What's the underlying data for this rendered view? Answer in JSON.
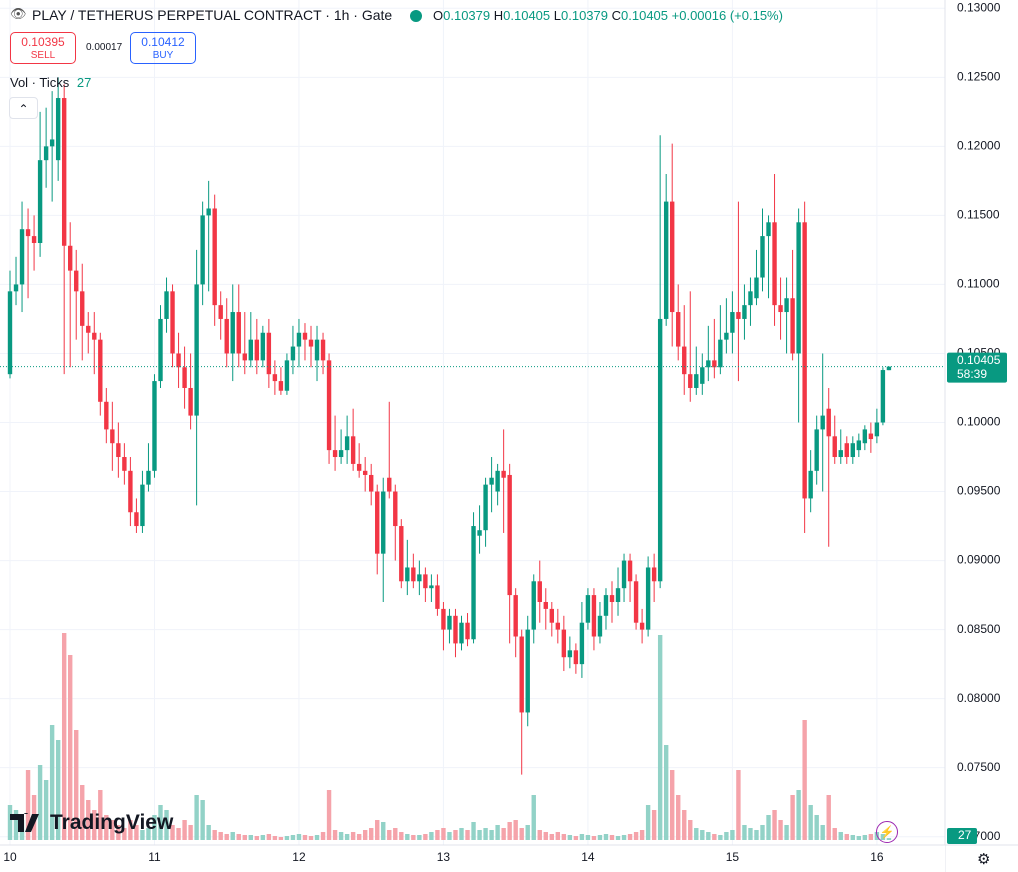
{
  "chart_data": {
    "type": "candlestick",
    "title": "PLAY / TETHERUS PERPETUAL CONTRACT · 1h · Gate",
    "categories": [
      "10",
      null,
      null,
      null,
      null,
      null,
      null,
      null,
      null,
      null,
      null,
      null,
      null,
      null,
      null,
      null,
      null,
      null,
      null,
      null,
      null,
      null,
      null,
      null,
      "11",
      null,
      null,
      null,
      null,
      null,
      null,
      null,
      null,
      null,
      null,
      null,
      null,
      null,
      null,
      null,
      null,
      null,
      null,
      null,
      null,
      null,
      null,
      null,
      "12",
      null,
      null,
      null,
      null,
      null,
      null,
      null,
      null,
      null,
      null,
      null,
      null,
      null,
      null,
      null,
      null,
      null,
      null,
      null,
      null,
      null,
      null,
      null,
      "13",
      null,
      null,
      null,
      null,
      null,
      null,
      null,
      null,
      null,
      null,
      null,
      null,
      null,
      null,
      null,
      null,
      null,
      null,
      null,
      null,
      null,
      null,
      null,
      "14",
      null,
      null,
      null,
      null,
      null,
      null,
      null,
      null,
      null,
      null,
      null,
      null,
      null,
      null,
      null,
      null,
      null,
      null,
      null,
      null,
      null,
      null,
      null,
      "15",
      null,
      null,
      null,
      null,
      null,
      null,
      null,
      null,
      null,
      null,
      null,
      null,
      null,
      null,
      null,
      null,
      null,
      null,
      null,
      null,
      null,
      null,
      null,
      "16",
      null,
      null
    ],
    "open": [
      0.1035,
      0.1095,
      0.11,
      0.114,
      0.1135,
      0.113,
      0.119,
      0.12,
      0.119,
      0.1235,
      0.1128,
      0.111,
      0.1095,
      0.107,
      0.1065,
      0.106,
      0.1015,
      0.0995,
      0.0985,
      0.0975,
      0.0965,
      0.0935,
      0.0925,
      0.0955,
      0.0965,
      0.103,
      0.1075,
      0.1095,
      0.105,
      0.104,
      0.1025,
      0.1005,
      0.11,
      0.115,
      0.1155,
      0.1085,
      0.1075,
      0.105,
      0.108,
      0.105,
      0.1045,
      0.106,
      0.1045,
      0.1065,
      0.1035,
      0.103,
      0.1023,
      0.1045,
      0.1055,
      0.1065,
      0.106,
      0.1045,
      0.106,
      0.1045,
      0.098,
      0.0975,
      0.098,
      0.099,
      0.097,
      0.0965,
      0.0962,
      0.095,
      0.0905,
      0.096,
      0.095,
      0.0925,
      0.0885,
      0.0895,
      0.0885,
      0.089,
      0.088,
      0.0882,
      0.0865,
      0.085,
      0.086,
      0.084,
      0.0855,
      0.0843,
      0.0918,
      0.0922,
      0.0955,
      0.095,
      0.0965,
      0.0962,
      0.0875,
      0.0845,
      0.079,
      0.085,
      0.0885,
      0.087,
      0.0865,
      0.0855,
      0.085,
      0.083,
      0.0835,
      0.0825,
      0.0855,
      0.0875,
      0.0845,
      0.086,
      0.0875,
      0.087,
      0.088,
      0.09,
      0.0885,
      0.0855,
      0.085,
      0.0895,
      0.0885,
      0.1075,
      0.116,
      0.108,
      0.1055,
      0.1035,
      0.1025,
      0.1028,
      0.104,
      0.1045,
      0.104,
      0.106,
      0.1065,
      0.108,
      0.1075,
      0.1085,
      0.109,
      0.1105,
      0.1135,
      0.1145,
      0.1085,
      0.108,
      0.109,
      0.105,
      0.1145,
      0.0945,
      0.0965,
      0.0995,
      0.101,
      0.099,
      0.0975,
      0.0985,
      0.0975,
      0.098,
      0.0985,
      0.0992,
      0.099,
      0.1,
      0.10379
    ],
    "high": [
      0.111,
      0.112,
      0.116,
      0.1155,
      0.115,
      0.1225,
      0.1228,
      0.124,
      0.125,
      0.1245,
      0.1145,
      0.1125,
      0.1115,
      0.108,
      0.108,
      0.1065,
      0.1025,
      0.1015,
      0.1,
      0.0985,
      0.0975,
      0.0945,
      0.0965,
      0.0985,
      0.1035,
      0.1085,
      0.1105,
      0.11,
      0.1065,
      0.1055,
      0.105,
      0.1125,
      0.116,
      0.1175,
      0.1165,
      0.1095,
      0.109,
      0.11,
      0.11,
      0.108,
      0.108,
      0.1075,
      0.107,
      0.1075,
      0.1045,
      0.104,
      0.105,
      0.107,
      0.1075,
      0.1072,
      0.107,
      0.107,
      0.1065,
      0.105,
      0.1005,
      0.0995,
      0.1005,
      0.101,
      0.0985,
      0.0975,
      0.097,
      0.0955,
      0.096,
      0.1015,
      0.0955,
      0.093,
      0.0915,
      0.0905,
      0.09,
      0.0895,
      0.089,
      0.089,
      0.087,
      0.0865,
      0.0865,
      0.086,
      0.0862,
      0.0935,
      0.094,
      0.096,
      0.0975,
      0.097,
      0.0995,
      0.097,
      0.088,
      0.085,
      0.086,
      0.089,
      0.09,
      0.088,
      0.087,
      0.0865,
      0.086,
      0.0845,
      0.084,
      0.087,
      0.088,
      0.088,
      0.087,
      0.088,
      0.0885,
      0.0895,
      0.0905,
      0.0905,
      0.089,
      0.0865,
      0.0903,
      0.0905,
      0.1208,
      0.118,
      0.1202,
      0.11,
      0.1085,
      0.1095,
      0.1055,
      0.105,
      0.107,
      0.1075,
      0.1085,
      0.109,
      0.1095,
      0.116,
      0.11,
      0.1105,
      0.1125,
      0.1155,
      0.115,
      0.118,
      0.1105,
      0.1105,
      0.1125,
      0.1155,
      0.116,
      0.098,
      0.1005,
      0.105,
      0.1025,
      0.1005,
      0.0995,
      0.099,
      0.099,
      0.0992,
      0.0998,
      0.1,
      0.101,
      0.104,
      0.10405
    ],
    "low": [
      0.1032,
      0.1085,
      0.108,
      0.109,
      0.111,
      0.112,
      0.117,
      0.116,
      0.1175,
      0.1035,
      0.104,
      0.106,
      0.1045,
      0.105,
      0.1035,
      0.1005,
      0.0985,
      0.0965,
      0.096,
      0.0955,
      0.0925,
      0.092,
      0.092,
      0.095,
      0.096,
      0.1025,
      0.1065,
      0.104,
      0.1025,
      0.101,
      0.0995,
      0.094,
      0.1085,
      0.1095,
      0.107,
      0.106,
      0.104,
      0.103,
      0.104,
      0.1035,
      0.104,
      0.1035,
      0.104,
      0.1025,
      0.102,
      0.102,
      0.102,
      0.1035,
      0.104,
      0.1045,
      0.104,
      0.103,
      0.1035,
      0.097,
      0.0965,
      0.097,
      0.097,
      0.0965,
      0.096,
      0.095,
      0.094,
      0.089,
      0.087,
      0.0945,
      0.09,
      0.088,
      0.0875,
      0.088,
      0.0875,
      0.087,
      0.087,
      0.086,
      0.0835,
      0.084,
      0.083,
      0.0835,
      0.0838,
      0.084,
      0.0905,
      0.091,
      0.0935,
      0.094,
      0.092,
      0.084,
      0.083,
      0.0745,
      0.078,
      0.084,
      0.0855,
      0.085,
      0.0845,
      0.084,
      0.082,
      0.0822,
      0.0818,
      0.0815,
      0.085,
      0.0835,
      0.084,
      0.085,
      0.0855,
      0.086,
      0.087,
      0.087,
      0.085,
      0.084,
      0.0845,
      0.087,
      0.088,
      0.107,
      0.1055,
      0.1045,
      0.102,
      0.1015,
      0.102,
      0.102,
      0.103,
      0.1032,
      0.1035,
      0.105,
      0.105,
      0.103,
      0.106,
      0.107,
      0.1085,
      0.1095,
      0.109,
      0.107,
      0.106,
      0.105,
      0.1045,
      0.1,
      0.092,
      0.0935,
      0.0955,
      0.095,
      0.091,
      0.097,
      0.097,
      0.097,
      0.097,
      0.0975,
      0.098,
      0.0978,
      0.0985,
      0.0998,
      0.10379
    ],
    "close": [
      0.1095,
      0.11,
      0.114,
      0.1135,
      0.113,
      0.119,
      0.12,
      0.1205,
      0.1235,
      0.1128,
      0.111,
      0.1095,
      0.107,
      0.1065,
      0.106,
      0.1015,
      0.0995,
      0.0985,
      0.0975,
      0.0965,
      0.0935,
      0.0925,
      0.0955,
      0.0965,
      0.103,
      0.1075,
      0.1095,
      0.105,
      0.104,
      0.1025,
      0.1005,
      0.11,
      0.115,
      0.1155,
      0.1085,
      0.1075,
      0.105,
      0.108,
      0.105,
      0.1045,
      0.106,
      0.1045,
      0.1065,
      0.1035,
      0.103,
      0.1023,
      0.1045,
      0.1055,
      0.1065,
      0.106,
      0.1055,
      0.106,
      0.1045,
      0.098,
      0.0975,
      0.098,
      0.099,
      0.097,
      0.0965,
      0.0962,
      0.095,
      0.0905,
      0.095,
      0.095,
      0.0925,
      0.0885,
      0.0895,
      0.0885,
      0.089,
      0.088,
      0.0882,
      0.0865,
      0.085,
      0.086,
      0.084,
      0.0855,
      0.0843,
      0.0925,
      0.0922,
      0.0955,
      0.096,
      0.0965,
      0.096,
      0.0875,
      0.0845,
      0.079,
      0.085,
      0.0885,
      0.087,
      0.0865,
      0.0855,
      0.085,
      0.083,
      0.0835,
      0.0825,
      0.0855,
      0.0875,
      0.0845,
      0.086,
      0.0875,
      0.087,
      0.088,
      0.09,
      0.0885,
      0.0855,
      0.085,
      0.0895,
      0.0885,
      0.1075,
      0.116,
      0.108,
      0.1055,
      0.1035,
      0.1025,
      0.1035,
      0.104,
      0.1045,
      0.104,
      0.106,
      0.1065,
      0.108,
      0.1075,
      0.1085,
      0.1095,
      0.1105,
      0.1135,
      0.1145,
      0.1085,
      0.108,
      0.109,
      0.105,
      0.1145,
      0.0945,
      0.0965,
      0.0995,
      0.1005,
      0.099,
      0.0975,
      0.098,
      0.0975,
      0.0985,
      0.0987,
      0.0995,
      0.0988,
      0.1,
      0.1038,
      0.10405
    ],
    "volume": [
      490,
      420,
      280,
      980,
      630,
      1050,
      840,
      1610,
      1400,
      2898,
      2590,
      1540,
      770,
      560,
      420,
      700,
      350,
      280,
      210,
      168,
      280,
      210,
      140,
      168,
      350,
      490,
      420,
      210,
      168,
      280,
      210,
      630,
      560,
      210,
      140,
      112,
      84,
      112,
      84,
      70,
      70,
      56,
      70,
      84,
      56,
      42,
      56,
      70,
      84,
      70,
      56,
      70,
      112,
      700,
      140,
      112,
      84,
      112,
      84,
      140,
      168,
      280,
      252,
      140,
      168,
      112,
      84,
      70,
      70,
      84,
      112,
      140,
      168,
      112,
      140,
      168,
      140,
      252,
      140,
      168,
      140,
      210,
      168,
      252,
      280,
      168,
      210,
      630,
      140,
      112,
      84,
      112,
      84,
      70,
      56,
      84,
      70,
      56,
      70,
      84,
      70,
      56,
      70,
      84,
      112,
      140,
      490,
      420,
      2870,
      1330,
      980,
      630,
      420,
      280,
      168,
      140,
      112,
      84,
      70,
      112,
      140,
      980,
      210,
      168,
      140,
      210,
      350,
      420,
      280,
      210,
      630,
      700,
      1680,
      490,
      350,
      210,
      630,
      168,
      112,
      84,
      70,
      56,
      70,
      84,
      112,
      84,
      27
    ],
    "colors": {
      "up": "#089981",
      "down": "#f23645",
      "volume_up": "#92d2c7",
      "volume_down": "#f5a3aa"
    },
    "ylim": [
      0.0694,
      0.1306
    ],
    "yticks": [
      {
        "value": 0.13,
        "label": "0.13000"
      },
      {
        "value": 0.125,
        "label": "0.12500"
      },
      {
        "value": 0.12,
        "label": "0.12000"
      },
      {
        "value": 0.115,
        "label": "0.11500"
      },
      {
        "value": 0.11,
        "label": "0.11000"
      },
      {
        "value": 0.105,
        "label": "0.10500"
      },
      {
        "value": 0.1,
        "label": "0.10000"
      },
      {
        "value": 0.095,
        "label": "0.09500"
      },
      {
        "value": 0.09,
        "label": "0.09000"
      },
      {
        "value": 0.085,
        "label": "0.08500"
      },
      {
        "value": 0.08,
        "label": "0.08000"
      },
      {
        "value": 0.075,
        "label": "0.07500"
      },
      {
        "value": 0.07,
        "label": "0.07000"
      }
    ],
    "grid": true
  },
  "ui": {
    "ohlc_letters": [
      "O",
      "H",
      "L",
      "C"
    ],
    "change": "+0.00016 (+0.15%)",
    "sell_price": 0.10395,
    "sell_label": "SELL",
    "spread": 0.00017,
    "buy_price": 0.10412,
    "buy_label": "BUY",
    "volume_label": "Vol · Ticks",
    "countdown": "58:39",
    "logo": "TradingView"
  }
}
